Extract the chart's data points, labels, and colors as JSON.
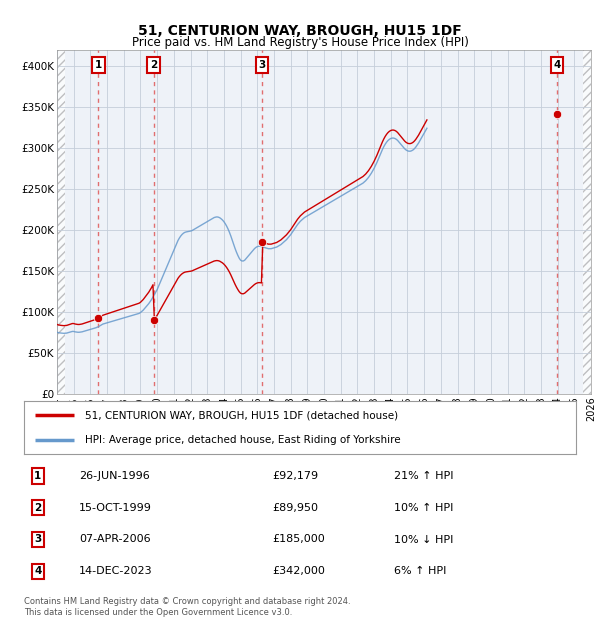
{
  "title": "51, CENTURION WAY, BROUGH, HU15 1DF",
  "subtitle": "Price paid vs. HM Land Registry's House Price Index (HPI)",
  "x_start": 1994.0,
  "x_end": 2026.0,
  "y_min": 0,
  "y_max": 420000,
  "y_ticks": [
    0,
    50000,
    100000,
    150000,
    200000,
    250000,
    300000,
    350000,
    400000
  ],
  "y_tick_labels": [
    "£0",
    "£50K",
    "£100K",
    "£150K",
    "£200K",
    "£250K",
    "£300K",
    "£350K",
    "£400K"
  ],
  "x_ticks": [
    1994,
    1995,
    1996,
    1997,
    1998,
    1999,
    2000,
    2001,
    2002,
    2003,
    2004,
    2005,
    2006,
    2007,
    2008,
    2009,
    2010,
    2011,
    2012,
    2013,
    2014,
    2015,
    2016,
    2017,
    2018,
    2019,
    2020,
    2021,
    2022,
    2023,
    2024,
    2025,
    2026
  ],
  "background_color": "#eef2f8",
  "hatch_color": "#bbbbbb",
  "grid_color": "#c5ceda",
  "red_line_color": "#cc0000",
  "blue_line_color": "#6699cc",
  "sale_marker_color": "#cc0000",
  "vline_color": "#e06060",
  "purchases": [
    {
      "num": 1,
      "year": 1996.48,
      "price": 92179,
      "label": "26-JUN-1996",
      "price_str": "£92,179",
      "pct": "21% ↑ HPI"
    },
    {
      "num": 2,
      "year": 1999.79,
      "price": 89950,
      "label": "15-OCT-1999",
      "price_str": "£89,950",
      "pct": "10% ↑ HPI"
    },
    {
      "num": 3,
      "year": 2006.27,
      "price": 185000,
      "label": "07-APR-2006",
      "price_str": "£185,000",
      "pct": "10% ↓ HPI"
    },
    {
      "num": 4,
      "year": 2023.96,
      "price": 342000,
      "label": "14-DEC-2023",
      "price_str": "£342,000",
      "pct": "6% ↑ HPI"
    }
  ],
  "legend_line1": "51, CENTURION WAY, BROUGH, HU15 1DF (detached house)",
  "legend_line2": "HPI: Average price, detached house, East Riding of Yorkshire",
  "footnote": "Contains HM Land Registry data © Crown copyright and database right 2024.\nThis data is licensed under the Open Government Licence v3.0.",
  "hpi_monthly": {
    "start_year": 1994.0,
    "step": 0.08333,
    "values": [
      75000,
      74500,
      74200,
      74000,
      73800,
      73700,
      73800,
      74000,
      74500,
      75000,
      75500,
      76000,
      76000,
      75500,
      75200,
      75000,
      75000,
      75200,
      75500,
      76000,
      76500,
      77000,
      77500,
      78000,
      78500,
      79000,
      79500,
      80000,
      80500,
      81200,
      82000,
      83000,
      84000,
      85000,
      85500,
      86000,
      86500,
      87000,
      87500,
      88000,
      88500,
      89000,
      89500,
      90000,
      90500,
      91000,
      91500,
      92000,
      92500,
      93000,
      93500,
      94000,
      94500,
      95000,
      95500,
      96000,
      96500,
      97000,
      97500,
      98000,
      99000,
      100500,
      102000,
      104000,
      106000,
      108000,
      110000,
      112500,
      115000,
      118000,
      121000,
      124000,
      127000,
      131000,
      135000,
      139000,
      143000,
      147000,
      151000,
      155000,
      159000,
      163000,
      167000,
      171000,
      175000,
      179000,
      183000,
      187000,
      190000,
      192500,
      194500,
      196000,
      197000,
      197500,
      197800,
      198000,
      198500,
      199000,
      200000,
      201000,
      202000,
      203000,
      204000,
      205000,
      206000,
      207000,
      208000,
      209000,
      210000,
      211000,
      212000,
      213000,
      214000,
      215000,
      215500,
      215800,
      215500,
      214800,
      213500,
      212000,
      210000,
      207500,
      204500,
      201000,
      197000,
      192500,
      187500,
      182500,
      177500,
      173000,
      169000,
      165500,
      163000,
      162000,
      162000,
      163000,
      165000,
      167000,
      169000,
      171000,
      173000,
      175000,
      177000,
      178500,
      179500,
      180000,
      180000,
      179500,
      179000,
      178500,
      178000,
      177500,
      177000,
      177000,
      177000,
      177500,
      178000,
      178500,
      179000,
      180000,
      181000,
      182000,
      183500,
      185000,
      186500,
      188000,
      190000,
      192000,
      194000,
      196500,
      199000,
      201500,
      204000,
      206500,
      208500,
      210500,
      212000,
      213500,
      215000,
      216000,
      217000,
      218000,
      219000,
      220000,
      221000,
      222000,
      223000,
      224000,
      225000,
      226000,
      227000,
      228000,
      229000,
      230000,
      231000,
      232000,
      233000,
      234000,
      235000,
      236000,
      237000,
      238000,
      239000,
      240000,
      241000,
      242000,
      243000,
      244000,
      245000,
      246000,
      247000,
      248000,
      249000,
      250000,
      251000,
      252000,
      253000,
      254000,
      255000,
      256000,
      257000,
      258500,
      260000,
      262000,
      264000,
      266500,
      269000,
      272000,
      275000,
      278500,
      282000,
      286000,
      290000,
      294000,
      298000,
      301500,
      304500,
      307000,
      309000,
      310500,
      311500,
      312000,
      312000,
      311500,
      310500,
      309000,
      307000,
      305000,
      303000,
      301000,
      299000,
      297500,
      296500,
      296000,
      296000,
      296500,
      297500,
      299000,
      301000,
      303500,
      306000,
      309000,
      312000,
      315000,
      318000,
      321000,
      324000
    ]
  }
}
